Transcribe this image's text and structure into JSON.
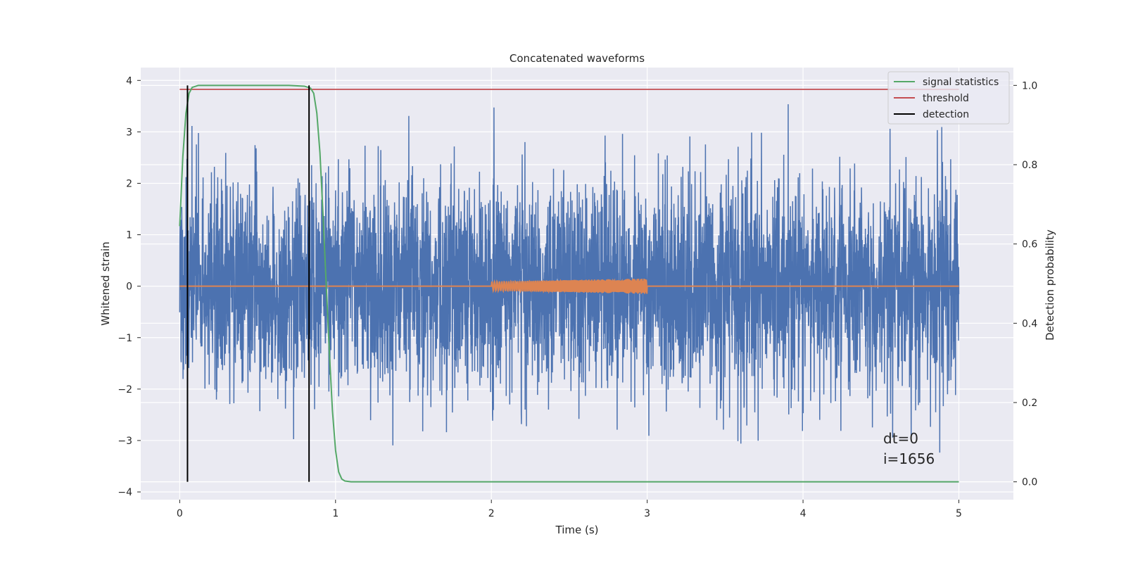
{
  "chart_data": {
    "type": "line",
    "title": "Concatenated waveforms",
    "xlabel": "Time (s)",
    "ylabel": "Whitened strain",
    "y2label": "Detection probability",
    "xlim": [
      -0.25,
      5.35
    ],
    "ylim": [
      -4.15,
      4.25
    ],
    "y2lim": [
      -0.045,
      1.045
    ],
    "xticks": [
      0,
      1,
      2,
      3,
      4,
      5
    ],
    "yticks": [
      -4,
      -3,
      -2,
      -1,
      0,
      1,
      2,
      3,
      4
    ],
    "y2ticks": [
      0.0,
      0.2,
      0.4,
      0.6,
      0.8,
      1.0
    ],
    "xtick_labels": [
      "0",
      "1",
      "2",
      "3",
      "4",
      "5"
    ],
    "ytick_labels": [
      "−4",
      "−3",
      "−2",
      "−1",
      "0",
      "1",
      "2",
      "3",
      "4"
    ],
    "y2tick_labels": [
      "0.0",
      "0.2",
      "0.4",
      "0.6",
      "0.8",
      "1.0"
    ],
    "grid": true,
    "legend_position": "top-right",
    "series": [
      {
        "name": "",
        "axis": "left",
        "color": "#4c72b0",
        "kind": "noise",
        "x_range": [
          0,
          5
        ],
        "envelope": [
          -3.75,
          3.87
        ]
      },
      {
        "name": "",
        "axis": "left",
        "color": "#dd8452",
        "kind": "chirp",
        "x_range": [
          0,
          5
        ],
        "signal_window": [
          2.0,
          3.0
        ],
        "amplitude_start": 0.09,
        "amplitude_end": 0.15
      },
      {
        "name": "signal statistics",
        "axis": "right",
        "color": "#55a868",
        "x": [
          0,
          0.02,
          0.04,
          0.06,
          0.08,
          0.12,
          0.2,
          0.5,
          0.7,
          0.8,
          0.84,
          0.86,
          0.88,
          0.9,
          0.92,
          0.94,
          0.96,
          0.98,
          1.0,
          1.02,
          1.04,
          1.06,
          1.1,
          1.5,
          2.0,
          3.0,
          4.0,
          5.0
        ],
        "y": [
          0.645,
          0.82,
          0.93,
          0.98,
          0.995,
          1.0,
          1.0,
          1.0,
          1.0,
          0.998,
          0.993,
          0.98,
          0.93,
          0.83,
          0.67,
          0.5,
          0.33,
          0.18,
          0.08,
          0.025,
          0.007,
          0.002,
          0.0,
          0.0,
          0.0,
          0.0,
          0.0,
          0.0
        ]
      },
      {
        "name": "threshold",
        "axis": "right",
        "color": "#c44e52",
        "x": [
          0,
          5
        ],
        "y": [
          0.99,
          0.99
        ]
      },
      {
        "name": "detection",
        "axis": "right",
        "color": "#000000",
        "vlines": [
          0.05,
          0.83
        ],
        "y_range": [
          0.0,
          1.0
        ]
      }
    ],
    "annotations": [
      "dt=0",
      "i=1656"
    ]
  }
}
